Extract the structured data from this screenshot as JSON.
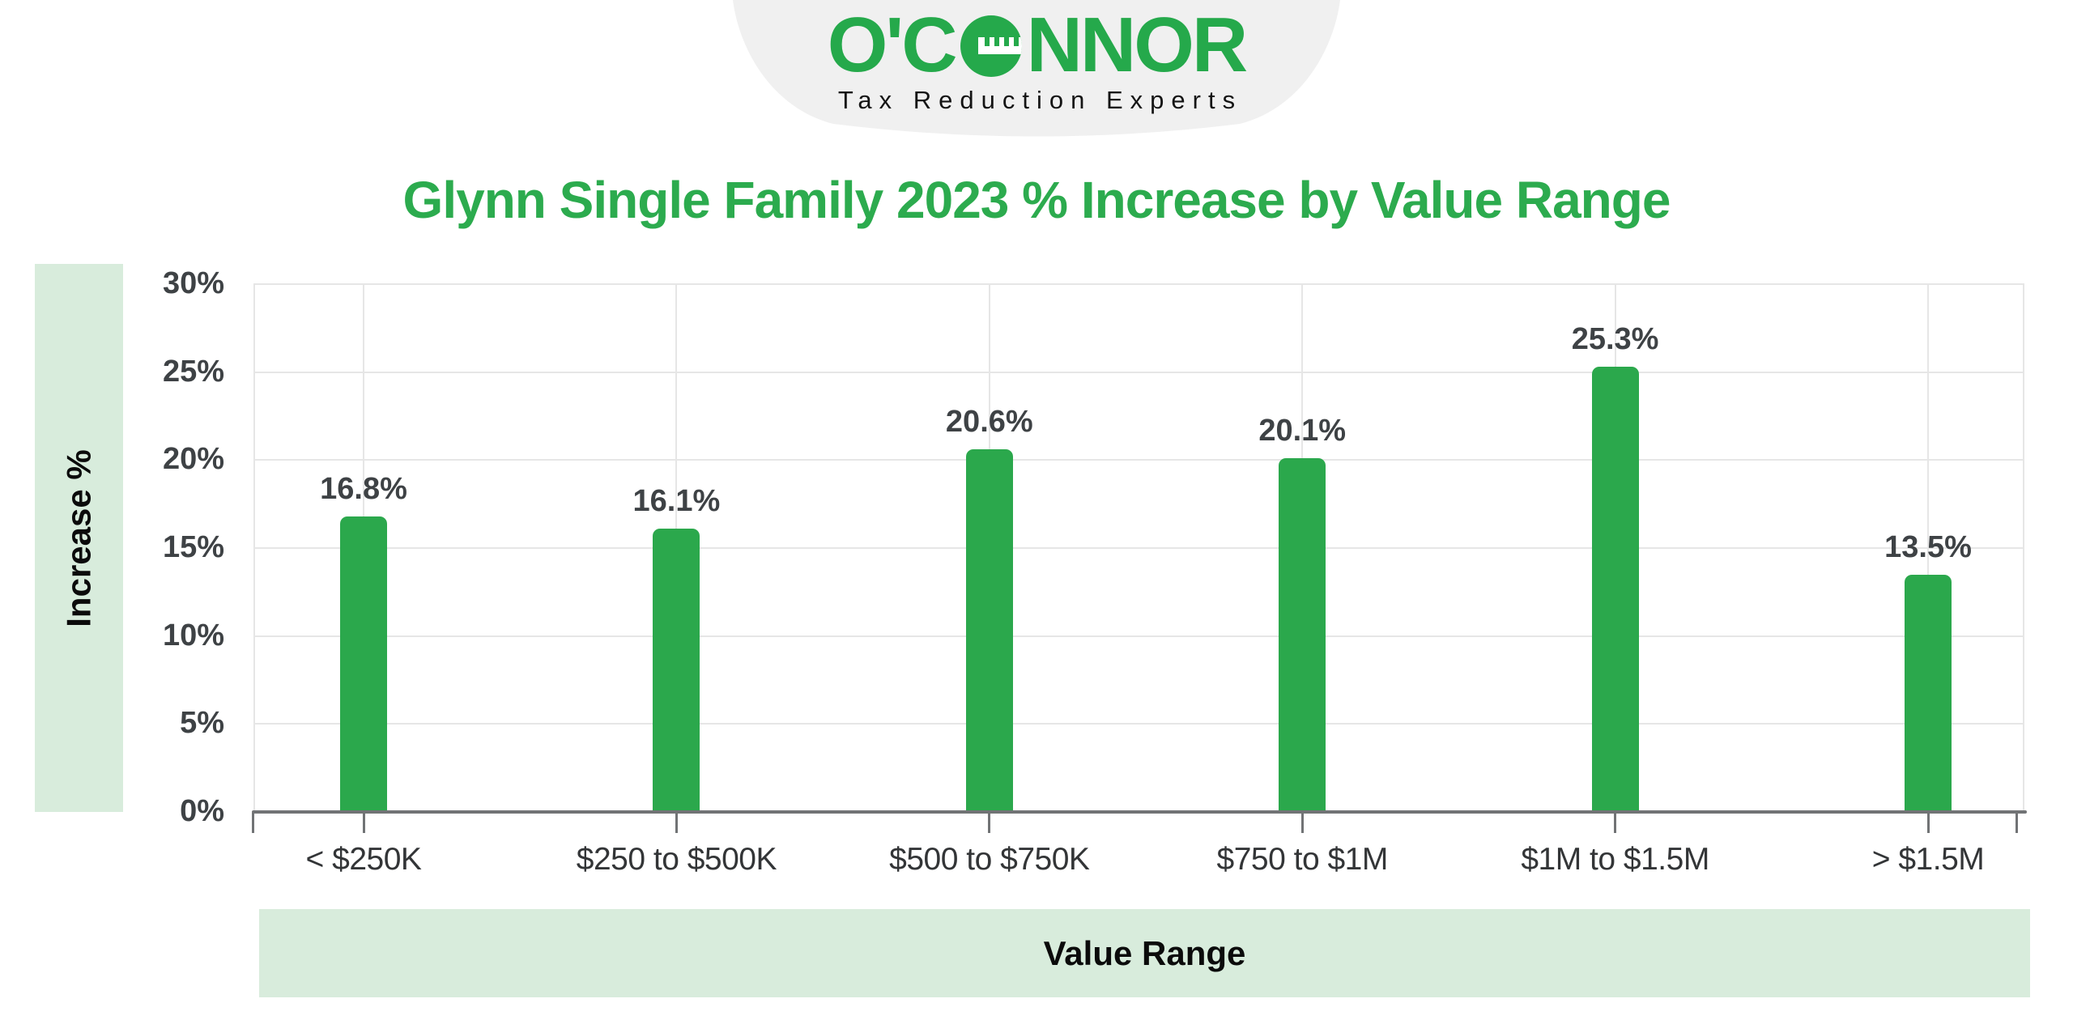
{
  "brand": {
    "name": "O'CONNOR",
    "name_prefix": "O'C",
    "name_suffix": "NNOR",
    "tagline": "Tax Reduction Experts",
    "logo_green": "#25A94B",
    "badge_gray": "#F0F0F0",
    "logo_o_icon": "tape-measure-o-icon"
  },
  "chart_data": {
    "type": "bar",
    "title": "Glynn Single Family 2023 % Increase by Value Range",
    "categories": [
      "< $250K",
      "$250 to $500K",
      "$500 to $750K",
      "$750 to $1M",
      "$1M to $1.5M",
      "> $1.5M"
    ],
    "values": [
      16.8,
      16.1,
      20.6,
      20.1,
      25.3,
      13.5
    ],
    "value_labels": [
      "16.8%",
      "16.1%",
      "20.6%",
      "20.1%",
      "25.3%",
      "13.5%"
    ],
    "xlabel": "Value Range",
    "ylabel": "Increase %",
    "ylim": [
      0,
      30
    ],
    "ytick_step": 5,
    "ytick_labels": [
      "0%",
      "5%",
      "10%",
      "15%",
      "20%",
      "25%",
      "30%"
    ],
    "grid": true,
    "legend": "none",
    "bar_color": "#2BA84C",
    "title_color": "#2CAB4E",
    "axis_band_color": "#D8ECDC"
  }
}
